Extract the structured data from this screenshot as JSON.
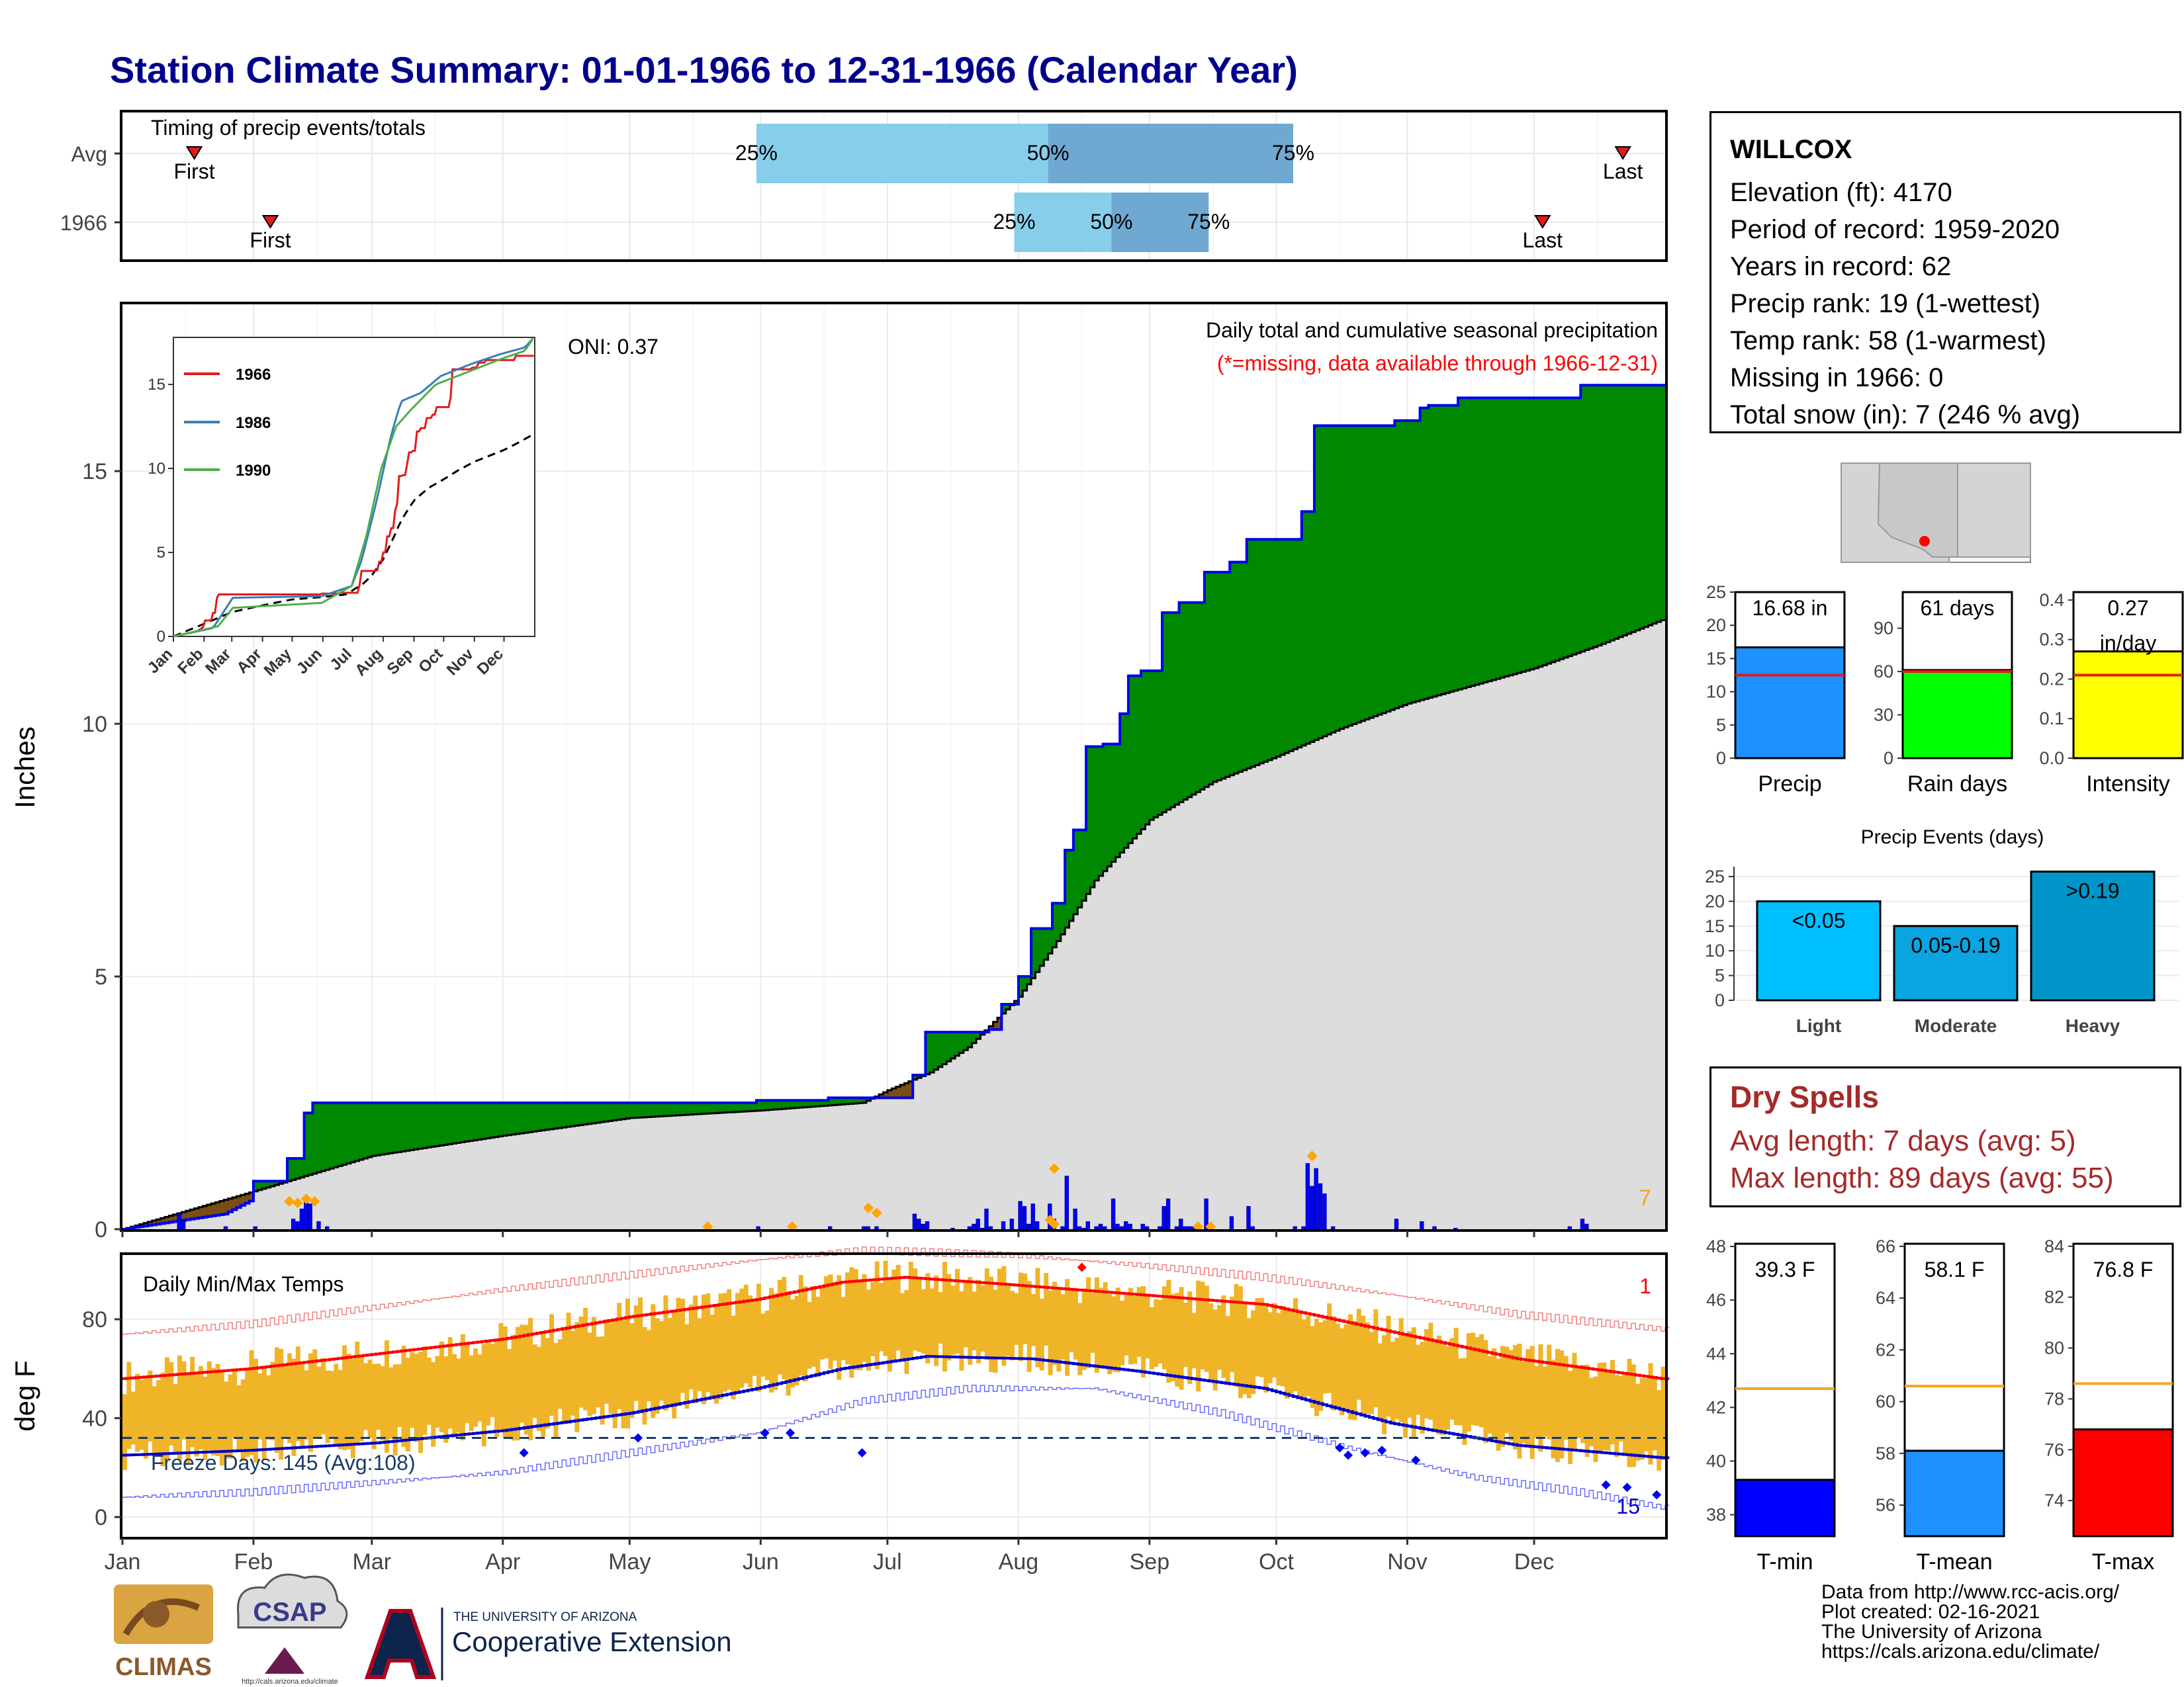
{
  "page": {
    "title": "Station Climate Summary: 01-01-1966 to 12-31-1966 (Calendar Year)",
    "title_color": "#00008b"
  },
  "timing": {
    "label": "Timing of precip events/totals",
    "rows": [
      {
        "name": "Avg",
        "first_day": 17,
        "last_day": 355,
        "p25_day": 150,
        "p50_day": 219,
        "p75_day": 277
      },
      {
        "name": "1966",
        "first_day": 35,
        "last_day": 336,
        "p25_day": 211,
        "p50_day": 234,
        "p75_day": 257
      }
    ],
    "first_label": "First",
    "last_label": "Last",
    "p25_label": "25%",
    "p50_label": "50%",
    "p75_label": "75%",
    "light_color": "#87ceeb",
    "dark_color": "#6fa8d0"
  },
  "months": [
    "Jan",
    "Feb",
    "Mar",
    "Apr",
    "May",
    "Jun",
    "Jul",
    "Aug",
    "Sep",
    "Oct",
    "Nov",
    "Dec"
  ],
  "chart_data": [
    {
      "type": "area",
      "title": "Daily total and cumulative seasonal precipitation",
      "subtitle": "(*=missing, data available through 1966-12-31)",
      "ylabel": "Inches",
      "ylim": [
        0,
        18.3
      ],
      "yticks": [
        0,
        5,
        10,
        15
      ],
      "oni": "ONI: 0.37",
      "snow_note": "7",
      "grid": true,
      "observed_cumulative": [
        [
          0,
          0
        ],
        [
          24,
          0.3
        ],
        [
          31,
          0.6
        ],
        [
          31,
          0.95
        ],
        [
          39,
          0.95
        ],
        [
          39,
          1.4
        ],
        [
          43,
          1.4
        ],
        [
          43,
          2.3
        ],
        [
          45,
          2.3
        ],
        [
          45,
          2.5
        ],
        [
          150,
          2.5
        ],
        [
          150,
          2.55
        ],
        [
          167,
          2.55
        ],
        [
          167,
          2.6
        ],
        [
          187,
          2.6
        ],
        [
          187,
          3.05
        ],
        [
          190,
          3.05
        ],
        [
          190,
          3.9
        ],
        [
          205,
          3.9
        ],
        [
          205,
          3.95
        ],
        [
          208,
          3.95
        ],
        [
          208,
          4.45
        ],
        [
          212,
          4.45
        ],
        [
          212,
          5.0
        ],
        [
          215,
          5.0
        ],
        [
          215,
          5.95
        ],
        [
          220,
          5.95
        ],
        [
          220,
          6.45
        ],
        [
          223,
          6.45
        ],
        [
          223,
          7.5
        ],
        [
          225,
          7.5
        ],
        [
          225,
          7.9
        ],
        [
          228,
          7.9
        ],
        [
          228,
          9.55
        ],
        [
          232,
          9.55
        ],
        [
          232,
          9.6
        ],
        [
          236,
          9.6
        ],
        [
          236,
          10.2
        ],
        [
          238,
          10.2
        ],
        [
          238,
          10.95
        ],
        [
          241,
          10.95
        ],
        [
          241,
          11.05
        ],
        [
          246,
          11.05
        ],
        [
          246,
          12.2
        ],
        [
          250,
          12.2
        ],
        [
          250,
          12.4
        ],
        [
          256,
          12.4
        ],
        [
          256,
          13.0
        ],
        [
          262,
          13.0
        ],
        [
          262,
          13.2
        ],
        [
          266,
          13.2
        ],
        [
          266,
          13.65
        ],
        [
          279,
          13.65
        ],
        [
          279,
          14.2
        ],
        [
          282,
          14.2
        ],
        [
          282,
          15.9
        ],
        [
          301,
          15.9
        ],
        [
          301,
          16.0
        ],
        [
          307,
          16.0
        ],
        [
          307,
          16.25
        ],
        [
          309,
          16.25
        ],
        [
          309,
          16.3
        ],
        [
          316,
          16.3
        ],
        [
          316,
          16.45
        ],
        [
          345,
          16.45
        ],
        [
          345,
          16.7
        ],
        [
          364,
          16.7
        ]
      ],
      "normal_cumulative": [
        [
          0,
          0
        ],
        [
          31,
          0.75
        ],
        [
          59,
          1.45
        ],
        [
          90,
          1.85
        ],
        [
          120,
          2.2
        ],
        [
          151,
          2.35
        ],
        [
          175,
          2.5
        ],
        [
          181,
          2.75
        ],
        [
          191,
          3.1
        ],
        [
          200,
          3.6
        ],
        [
          212,
          4.6
        ],
        [
          221,
          5.7
        ],
        [
          230,
          6.9
        ],
        [
          243,
          8.1
        ],
        [
          258,
          8.85
        ],
        [
          273,
          9.35
        ],
        [
          288,
          9.9
        ],
        [
          304,
          10.4
        ],
        [
          319,
          10.75
        ],
        [
          334,
          11.1
        ],
        [
          349,
          11.55
        ],
        [
          364,
          12.05
        ]
      ],
      "daily_precip": [
        [
          13,
          0.3
        ],
        [
          14,
          0.18
        ],
        [
          24,
          0.05
        ],
        [
          31,
          0.05
        ],
        [
          40,
          0.2
        ],
        [
          41,
          0.15
        ],
        [
          42,
          0.4
        ],
        [
          43,
          0.6
        ],
        [
          44,
          0.5
        ],
        [
          46,
          0.15
        ],
        [
          48,
          0.05
        ],
        [
          150,
          0.05
        ],
        [
          167,
          0.05
        ],
        [
          175,
          0.05
        ],
        [
          176,
          0.05
        ],
        [
          178,
          0.05
        ],
        [
          187,
          0.3
        ],
        [
          188,
          0.2
        ],
        [
          189,
          0.1
        ],
        [
          190,
          0.15
        ],
        [
          196,
          0.02
        ],
        [
          200,
          0.05
        ],
        [
          201,
          0.1
        ],
        [
          202,
          0.2
        ],
        [
          203,
          0.02
        ],
        [
          204,
          0.4
        ],
        [
          205,
          0.05
        ],
        [
          208,
          0.15
        ],
        [
          210,
          0.2
        ],
        [
          212,
          0.55
        ],
        [
          213,
          0.45
        ],
        [
          214,
          0.1
        ],
        [
          215,
          0.5
        ],
        [
          216,
          0.15
        ],
        [
          219,
          0.5
        ],
        [
          220,
          0.2
        ],
        [
          222,
          0.05
        ],
        [
          223,
          1.05
        ],
        [
          225,
          0.4
        ],
        [
          226,
          0.05
        ],
        [
          227,
          0.02
        ],
        [
          228,
          0.15
        ],
        [
          230,
          0.05
        ],
        [
          231,
          0.1
        ],
        [
          232,
          0.05
        ],
        [
          234,
          0.6
        ],
        [
          235,
          0.1
        ],
        [
          236,
          0.05
        ],
        [
          237,
          0.15
        ],
        [
          238,
          0.1
        ],
        [
          241,
          0.1
        ],
        [
          242,
          0.05
        ],
        [
          245,
          0.05
        ],
        [
          246,
          0.45
        ],
        [
          247,
          0.6
        ],
        [
          249,
          0.05
        ],
        [
          250,
          0.2
        ],
        [
          251,
          0.05
        ],
        [
          252,
          0.05
        ],
        [
          253,
          0.05
        ],
        [
          256,
          0.6
        ],
        [
          262,
          0.25
        ],
        [
          266,
          0.45
        ],
        [
          267,
          0.05
        ],
        [
          277,
          0.05
        ],
        [
          279,
          0.05
        ],
        [
          280,
          1.3
        ],
        [
          281,
          0.85
        ],
        [
          282,
          1.2
        ],
        [
          283,
          0.9
        ],
        [
          284,
          0.7
        ],
        [
          286,
          0.05
        ],
        [
          301,
          0.2
        ],
        [
          307,
          0.15
        ],
        [
          310,
          0.05
        ],
        [
          315,
          0.02
        ],
        [
          342,
          0.05
        ],
        [
          345,
          0.2
        ],
        [
          346,
          0.1
        ]
      ],
      "snow_markers": [
        [
          39,
          0.55
        ],
        [
          41,
          0.52
        ],
        [
          43,
          0.6
        ],
        [
          45,
          0.55
        ],
        [
          138,
          0.05
        ],
        [
          158,
          0.05
        ],
        [
          176,
          0.42
        ],
        [
          178,
          0.32
        ],
        [
          219,
          0.18
        ],
        [
          220,
          0.1
        ],
        [
          220,
          1.2
        ],
        [
          254,
          0.05
        ],
        [
          257,
          0.05
        ],
        [
          281,
          1.45
        ]
      ]
    },
    {
      "type": "line",
      "title": "Daily Min/Max Temps",
      "ylabel": "deg F",
      "ylim": [
        -8,
        106
      ],
      "yticks": [
        0,
        40,
        80
      ],
      "freeze_line": 32,
      "freeze_label": "Freeze Days: 145 (Avg:108)",
      "tmax_record_count": "1",
      "tmin_record_count": "15",
      "series": [
        {
          "name": "Normal high",
          "anchors": [
            [
              0,
              56
            ],
            [
              30,
              60
            ],
            [
              60,
              66
            ],
            [
              90,
              72
            ],
            [
              120,
              81
            ],
            [
              150,
              88
            ],
            [
              170,
              95
            ],
            [
              185,
              97
            ],
            [
              210,
              94
            ],
            [
              240,
              90
            ],
            [
              270,
              86
            ],
            [
              300,
              75
            ],
            [
              330,
              64
            ],
            [
              364,
              56
            ]
          ]
        },
        {
          "name": "Normal low",
          "anchors": [
            [
              0,
              25
            ],
            [
              30,
              27
            ],
            [
              60,
              30
            ],
            [
              90,
              35
            ],
            [
              120,
              42
            ],
            [
              150,
              52
            ],
            [
              170,
              60
            ],
            [
              190,
              65
            ],
            [
              215,
              64
            ],
            [
              240,
              59
            ],
            [
              270,
              52
            ],
            [
              300,
              38
            ],
            [
              330,
              29
            ],
            [
              364,
              24
            ]
          ]
        },
        {
          "name": "Record high",
          "anchors": [
            [
              0,
              74
            ],
            [
              30,
              78
            ],
            [
              60,
              85
            ],
            [
              90,
              92
            ],
            [
              120,
              98
            ],
            [
              150,
              104
            ],
            [
              175,
              108
            ],
            [
              210,
              106
            ],
            [
              240,
              102
            ],
            [
              270,
              97
            ],
            [
              300,
              90
            ],
            [
              330,
              82
            ],
            [
              364,
              76
            ]
          ]
        },
        {
          "name": "Record low",
          "anchors": [
            [
              0,
              8
            ],
            [
              30,
              10
            ],
            [
              60,
              14
            ],
            [
              90,
              18
            ],
            [
              120,
              26
            ],
            [
              150,
              34
            ],
            [
              175,
              47
            ],
            [
              200,
              52
            ],
            [
              230,
              52
            ],
            [
              260,
              42
            ],
            [
              290,
              28
            ],
            [
              320,
              16
            ],
            [
              345,
              10
            ],
            [
              364,
              4
            ]
          ]
        }
      ],
      "record_low_markers": [
        [
          95,
          26
        ],
        [
          122,
          32
        ],
        [
          152,
          34
        ],
        [
          158,
          34
        ],
        [
          175,
          26
        ],
        [
          288,
          28
        ],
        [
          290,
          25
        ],
        [
          294,
          26
        ],
        [
          298,
          27
        ],
        [
          306,
          23
        ],
        [
          351,
          13
        ],
        [
          356,
          12
        ],
        [
          363,
          9
        ]
      ],
      "record_high_markers": [
        [
          227,
          101
        ]
      ]
    }
  ],
  "station": {
    "name": "WILLCOX",
    "lines": [
      "Elevation (ft): 4170",
      "Period of record: 1959-2020",
      "Years in record: 62",
      "Precip rank: 19 (1-wettest)",
      "Temp rank: 58 (1-warmest)",
      "Missing in 1966: 0",
      "Total snow (in): 7 (246 % avg)"
    ]
  },
  "mini_bars": [
    {
      "label": "Precip",
      "value": 16.68,
      "value_label": "16.68 in",
      "avg": 12.5,
      "ymax": 25,
      "ticks": [
        0,
        5,
        10,
        15,
        20,
        25
      ],
      "color": "#1e90ff"
    },
    {
      "label": "Rain days",
      "value": 61,
      "value_label": "61 days",
      "avg": 60,
      "ymax": 115,
      "ticks": [
        0,
        30,
        60,
        90
      ],
      "color": "#00ff00"
    },
    {
      "label": "Intensity",
      "value": 0.27,
      "value_label": "0.27",
      "value_label2": "in/day",
      "avg": 0.21,
      "ymax": 0.42,
      "ticks": [
        "0.0",
        "0.1",
        "0.2",
        "0.3",
        "0.4"
      ],
      "color": "#ffff00"
    }
  ],
  "precip_events": {
    "title": "Precip Events (days)",
    "categories": [
      "Light",
      "Moderate",
      "Heavy"
    ],
    "values": [
      20,
      15,
      26
    ],
    "bar_labels": [
      "<0.05",
      "0.05-0.19",
      ">0.19"
    ],
    "colors": [
      "#00bfff",
      "#0aa4e0",
      "#0095c8"
    ],
    "ticks": [
      0,
      5,
      10,
      15,
      20,
      25
    ]
  },
  "dry_spells": {
    "title": "Dry Spells",
    "avg_line": "Avg length: 7 days (avg: 5)",
    "max_line": "Max length: 89 days (avg: 55)"
  },
  "temp_bars": [
    {
      "label": "T-min",
      "value_label": "39.3 F",
      "value": 39.3,
      "avg": 42.7,
      "ymin": 37.2,
      "ymax": 48.1,
      "ticks": [
        38,
        40,
        42,
        44,
        46,
        48
      ],
      "color": "#0000ff"
    },
    {
      "label": "T-mean",
      "value_label": "58.1 F",
      "value": 58.1,
      "avg": 60.6,
      "ymin": 54.8,
      "ymax": 66.1,
      "ticks": [
        56,
        58,
        60,
        62,
        64,
        66
      ],
      "color": "#1e90ff"
    },
    {
      "label": "T-max",
      "value_label": "76.8 F",
      "value": 76.8,
      "avg": 78.6,
      "ymin": 72.6,
      "ymax": 84.1,
      "ticks": [
        74,
        76,
        78,
        80,
        82,
        84
      ],
      "color": "#ff0000"
    }
  ],
  "credits": {
    "lines": [
      "Data from http://www.rcc-acis.org/",
      "Plot created: 02-16-2021",
      "The University of Arizona",
      "https://cals.arizona.edu/climate/"
    ]
  },
  "logos": {
    "climas": "CLIMAS",
    "csap": "CSAP",
    "csap_url": "http://cals.arizona.edu/climate",
    "ua_small": "THE UNIVERSITY OF ARIZONA",
    "ua_big": "Cooperative Extension"
  }
}
